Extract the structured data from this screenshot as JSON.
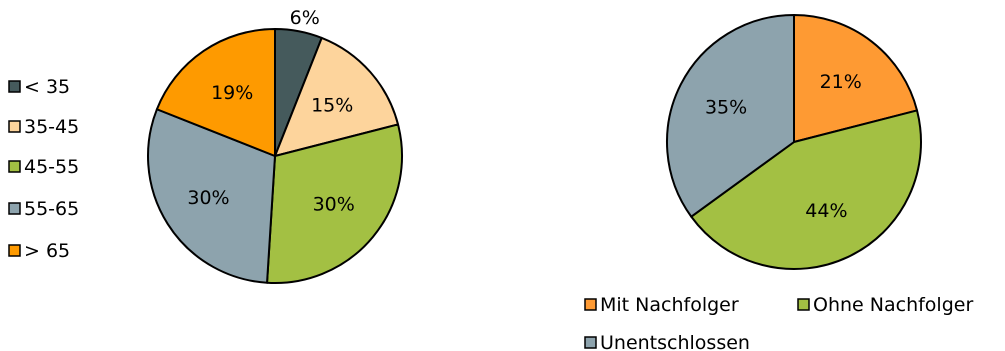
{
  "chart_data": [
    {
      "type": "pie",
      "legend_position": "left",
      "slices": [
        {
          "label": "< 35",
          "value": 6,
          "value_label": "6%",
          "color": "#455a5c"
        },
        {
          "label": "35-45",
          "value": 15,
          "value_label": "15%",
          "color": "#fdd49c"
        },
        {
          "label": "45-55",
          "value": 30,
          "value_label": "30%",
          "color": "#a3c043"
        },
        {
          "label": "55-65",
          "value": 30,
          "value_label": "30%",
          "color": "#8da3ad"
        },
        {
          "label": "> 65",
          "value": 19,
          "value_label": "19%",
          "color": "#fe9a00"
        }
      ]
    },
    {
      "type": "pie",
      "legend_position": "bottom",
      "slices": [
        {
          "label": "Mit Nachfolger",
          "value": 21,
          "value_label": "21%",
          "color": "#fe9a33"
        },
        {
          "label": "Ohne Nachfolger",
          "value": 44,
          "value_label": "44%",
          "color": "#a3c043"
        },
        {
          "label": "Unentschlossen",
          "value": 35,
          "value_label": "35%",
          "color": "#8da3ad"
        }
      ]
    }
  ]
}
